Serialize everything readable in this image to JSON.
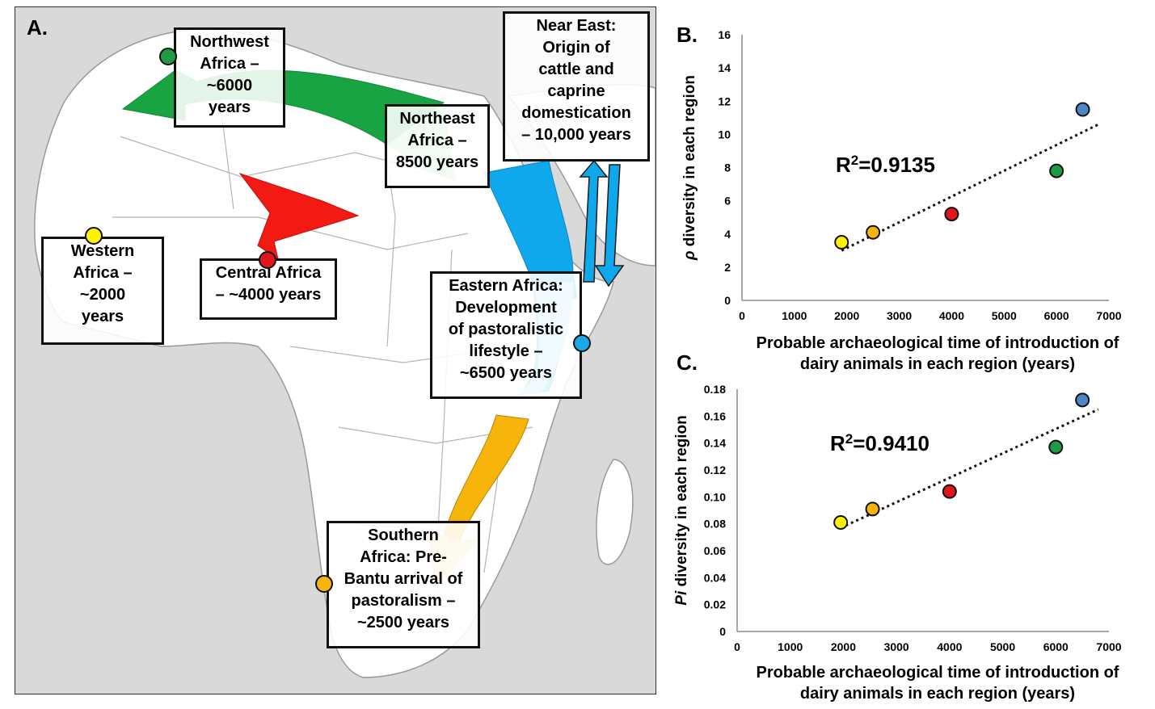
{
  "map": {
    "panel_label": "A.",
    "regions": [
      {
        "id": "northwest",
        "label": "Northwest\nAfrica –\n~6000\nyears",
        "color": "#1e9b45"
      },
      {
        "id": "northeast",
        "label": "Northeast\nAfrica –\n8500 years",
        "color": "#8fd1a4"
      },
      {
        "id": "neareast",
        "label": "Near East:\nOrigin of\ncattle and\ncaprine\ndomestication\n– 10,000 years",
        "color": ""
      },
      {
        "id": "western",
        "label": "Western\nAfrica –\n~2000\nyears",
        "color": "#fff200"
      },
      {
        "id": "central",
        "label": "Central Africa\n– ~4000 years",
        "color": "#e0161b"
      },
      {
        "id": "eastern",
        "label": "Eastern Africa:\nDevelopment\nof pastoralistic\nlifestyle –\n~6500 years",
        "color": "#1ba8e8"
      },
      {
        "id": "southern",
        "label": "Southern\nAfrica: Pre-\nBantu arrival of\npastoralism –\n~2500 years",
        "color": "#f8b40e"
      }
    ],
    "colors": {
      "green": "#19a444",
      "red": "#f21a12",
      "blue": "#0fa8ec",
      "orange": "#f7b50c",
      "land": "#ffffff",
      "sea": "#d9d9d9"
    }
  },
  "charts": {
    "xlabel": "Probable archaeological time of introduction of\ndairy animals in each region (years)"
  },
  "chart_data": [
    {
      "panel_label": "B.",
      "type": "scatter",
      "ylabel_symbol": "ρ",
      "ylabel_rest": " diversity in each region",
      "xlim": [
        0,
        7000
      ],
      "ylim": [
        0,
        16
      ],
      "xticks": [
        "0",
        "1000",
        "2000",
        "3000",
        "4000",
        "5000",
        "6000",
        "7000"
      ],
      "yticks": [
        "0",
        "2",
        "4",
        "6",
        "8",
        "10",
        "12",
        "14",
        "16"
      ],
      "r2_label": "R",
      "r2_value": "=0.9135",
      "points": [
        {
          "x": 1900,
          "y": 3.5,
          "color": "#fff200"
        },
        {
          "x": 2500,
          "y": 4.1,
          "color": "#f8b40e"
        },
        {
          "x": 4000,
          "y": 5.2,
          "color": "#e0161b"
        },
        {
          "x": 6000,
          "y": 7.8,
          "color": "#1e9b45"
        },
        {
          "x": 6500,
          "y": 11.5,
          "color": "#4f86c6"
        }
      ],
      "trendline": [
        [
          1900,
          3.0
        ],
        [
          6800,
          10.6
        ]
      ]
    },
    {
      "panel_label": "C.",
      "type": "scatter",
      "ylabel_symbol": "Pi",
      "ylabel_rest": " diversity in each region",
      "xlim": [
        0,
        7000
      ],
      "ylim": [
        0,
        0.18
      ],
      "xticks": [
        "0",
        "1000",
        "2000",
        "3000",
        "4000",
        "5000",
        "6000",
        "7000"
      ],
      "yticks": [
        "0",
        "0.02",
        "0.04",
        "0.06",
        "0.08",
        "0.10",
        "0.12",
        "0.14",
        "0.16",
        "0.18"
      ],
      "r2_label": "R",
      "r2_value": "=0.9410",
      "points": [
        {
          "x": 1950,
          "y": 0.081,
          "color": "#fff200"
        },
        {
          "x": 2550,
          "y": 0.091,
          "color": "#f8b40e"
        },
        {
          "x": 4000,
          "y": 0.104,
          "color": "#e0161b"
        },
        {
          "x": 6000,
          "y": 0.137,
          "color": "#1e9b45"
        },
        {
          "x": 6500,
          "y": 0.172,
          "color": "#4f86c6"
        }
      ],
      "trendline": [
        [
          1950,
          0.077
        ],
        [
          6800,
          0.165
        ]
      ]
    }
  ]
}
